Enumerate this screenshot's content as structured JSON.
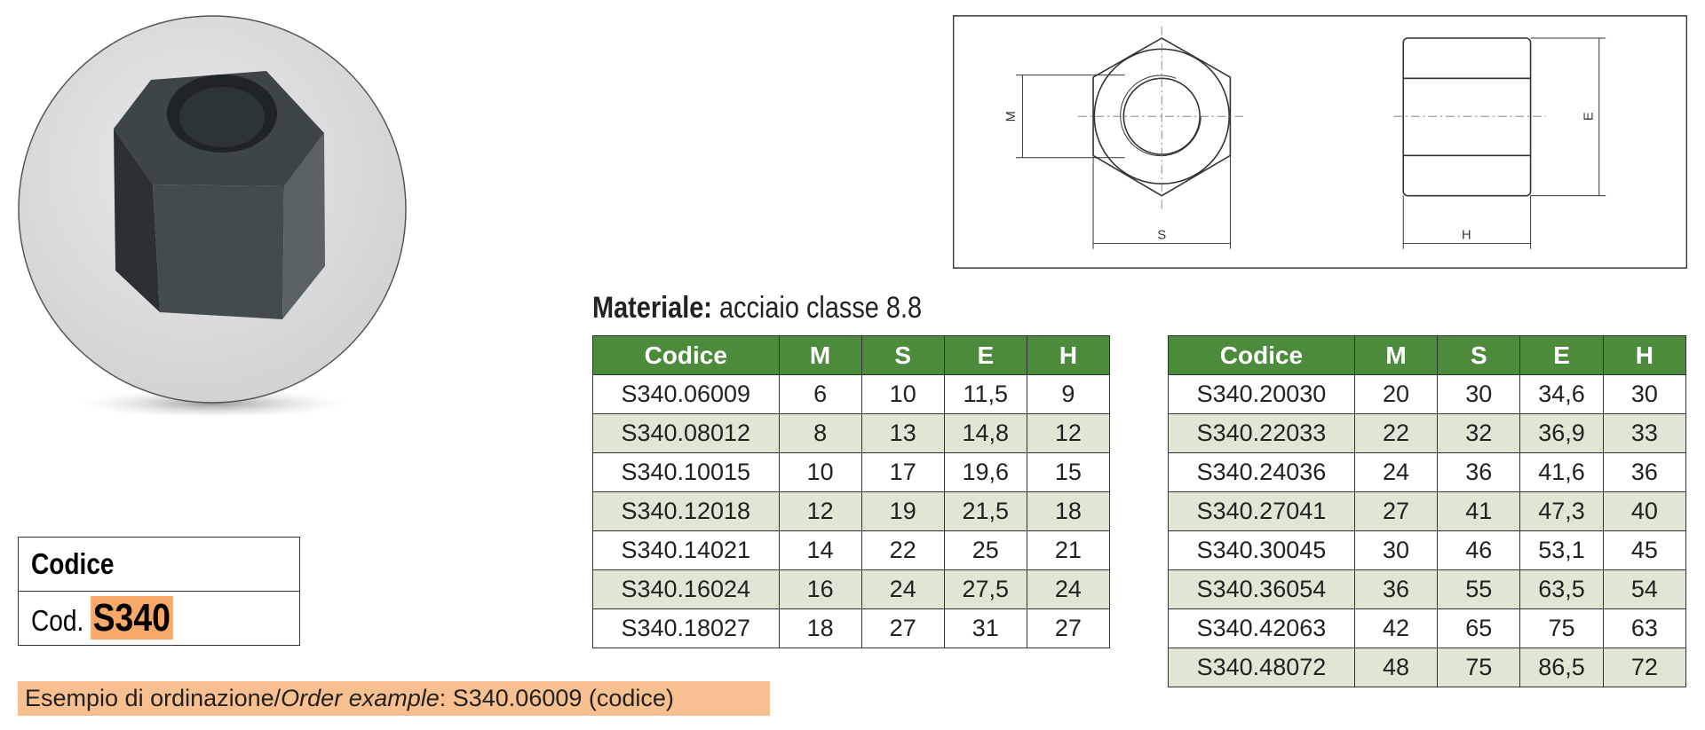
{
  "drawing_labels": [
    "M",
    "S",
    "E",
    "H"
  ],
  "material": {
    "label": "Materiale:",
    "value": "acciaio classe 8.8"
  },
  "code_box": {
    "header": "Codice",
    "prefix": "Cod.",
    "code": "S340"
  },
  "tables": [
    {
      "columns": [
        "Codice",
        "M",
        "S",
        "E",
        "H"
      ],
      "rows": [
        [
          "S340.06009",
          "6",
          "10",
          "11,5",
          "9"
        ],
        [
          "S340.08012",
          "8",
          "13",
          "14,8",
          "12"
        ],
        [
          "S340.10015",
          "10",
          "17",
          "19,6",
          "15"
        ],
        [
          "S340.12018",
          "12",
          "19",
          "21,5",
          "18"
        ],
        [
          "S340.14021",
          "14",
          "22",
          "25",
          "21"
        ],
        [
          "S340.16024",
          "16",
          "24",
          "27,5",
          "24"
        ],
        [
          "S340.18027",
          "18",
          "27",
          "31",
          "27"
        ]
      ]
    },
    {
      "columns": [
        "Codice",
        "M",
        "S",
        "E",
        "H"
      ],
      "rows": [
        [
          "S340.20030",
          "20",
          "30",
          "34,6",
          "30"
        ],
        [
          "S340.22033",
          "22",
          "32",
          "36,9",
          "33"
        ],
        [
          "S340.24036",
          "24",
          "36",
          "41,6",
          "36"
        ],
        [
          "S340.27041",
          "27",
          "41",
          "47,3",
          "40"
        ],
        [
          "S340.30045",
          "30",
          "46",
          "53,1",
          "45"
        ],
        [
          "S340.36054",
          "36",
          "55",
          "63,5",
          "54"
        ],
        [
          "S340.42063",
          "42",
          "65",
          "75",
          "63"
        ],
        [
          "S340.48072",
          "48",
          "75",
          "86,5",
          "72"
        ]
      ]
    }
  ],
  "order_example": {
    "label": "Esempio di ordinazione/",
    "label_en": "Order example",
    "value": ": S340.06009 (codice)"
  }
}
